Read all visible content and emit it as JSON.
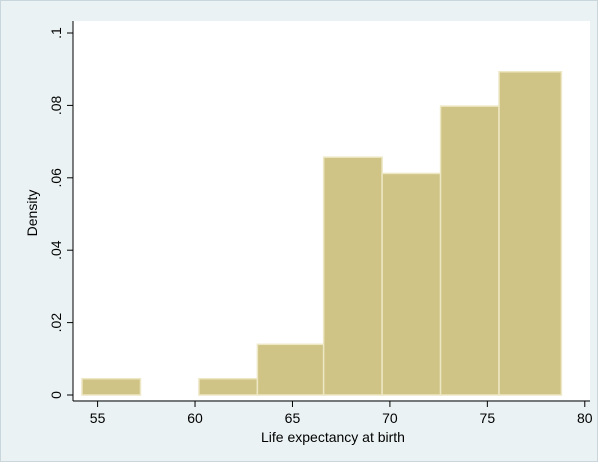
{
  "chart_data": {
    "type": "bar",
    "title": "",
    "xlabel": "Life expectancy at birth",
    "ylabel": "Density",
    "xlim": [
      54,
      80.5
    ],
    "ylim": [
      0,
      0.1
    ],
    "x_ticks": [
      55,
      60,
      65,
      70,
      75,
      80
    ],
    "x_tick_labels": [
      "55",
      "60",
      "65",
      "70",
      "75",
      "80"
    ],
    "y_ticks": [
      0,
      0.02,
      0.04,
      0.06,
      0.08,
      0.1
    ],
    "y_tick_labels": [
      "0",
      ".02",
      ".04",
      ".06",
      ".08",
      ".1"
    ],
    "bins": [
      {
        "x0": 54.2,
        "x1": 57.2,
        "density": 0.0045
      },
      {
        "x0": 60.2,
        "x1": 63.2,
        "density": 0.0045
      },
      {
        "x0": 63.2,
        "x1": 66.6,
        "density": 0.014
      },
      {
        "x0": 66.6,
        "x1": 69.6,
        "density": 0.0657
      },
      {
        "x0": 69.6,
        "x1": 72.6,
        "density": 0.0612
      },
      {
        "x0": 72.6,
        "x1": 75.6,
        "density": 0.0798
      },
      {
        "x0": 75.6,
        "x1": 78.8,
        "density": 0.0893
      }
    ],
    "grid": false,
    "legend": "none",
    "colors": {
      "bar_fill": "#cfc386",
      "bar_stroke": "#ede7c4",
      "plot_background": "#ffffff",
      "outer_background": "#eaf2f3"
    }
  }
}
